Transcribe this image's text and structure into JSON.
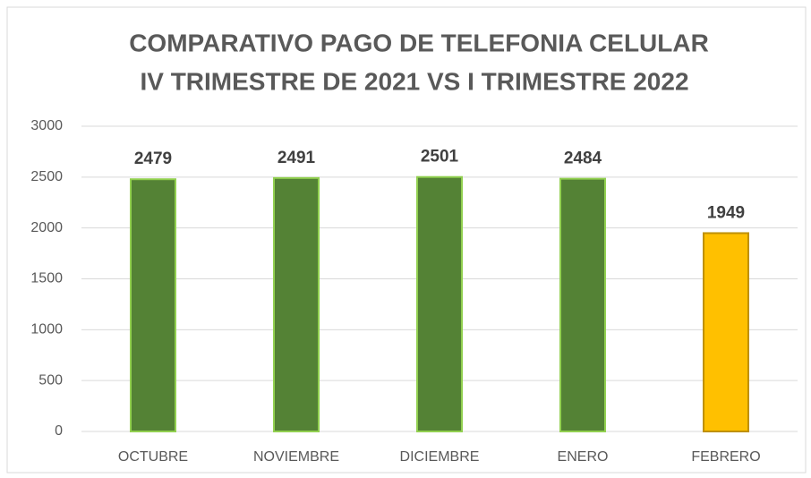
{
  "chart_data": {
    "type": "bar",
    "title": [
      "COMPARATIVO PAGO DE TELEFONIA CELULAR",
      "IV TRIMESTRE DE 2021 VS I TRIMESTRE 2022"
    ],
    "categories": [
      "OCTUBRE",
      "NOVIEMBRE",
      "DICIEMBRE",
      "ENERO",
      "FEBRERO"
    ],
    "values": [
      2479,
      2491,
      2501,
      2484,
      1949
    ],
    "colors": [
      "#548235",
      "#548235",
      "#548235",
      "#548235",
      "#ffc000"
    ],
    "edgecolors": [
      "#92d050",
      "#92d050",
      "#92d050",
      "#92d050",
      "#bf9000"
    ],
    "ylim": [
      0,
      3000
    ],
    "yticks": [
      0,
      500,
      1000,
      1500,
      2000,
      2500,
      3000
    ],
    "grid": true
  }
}
